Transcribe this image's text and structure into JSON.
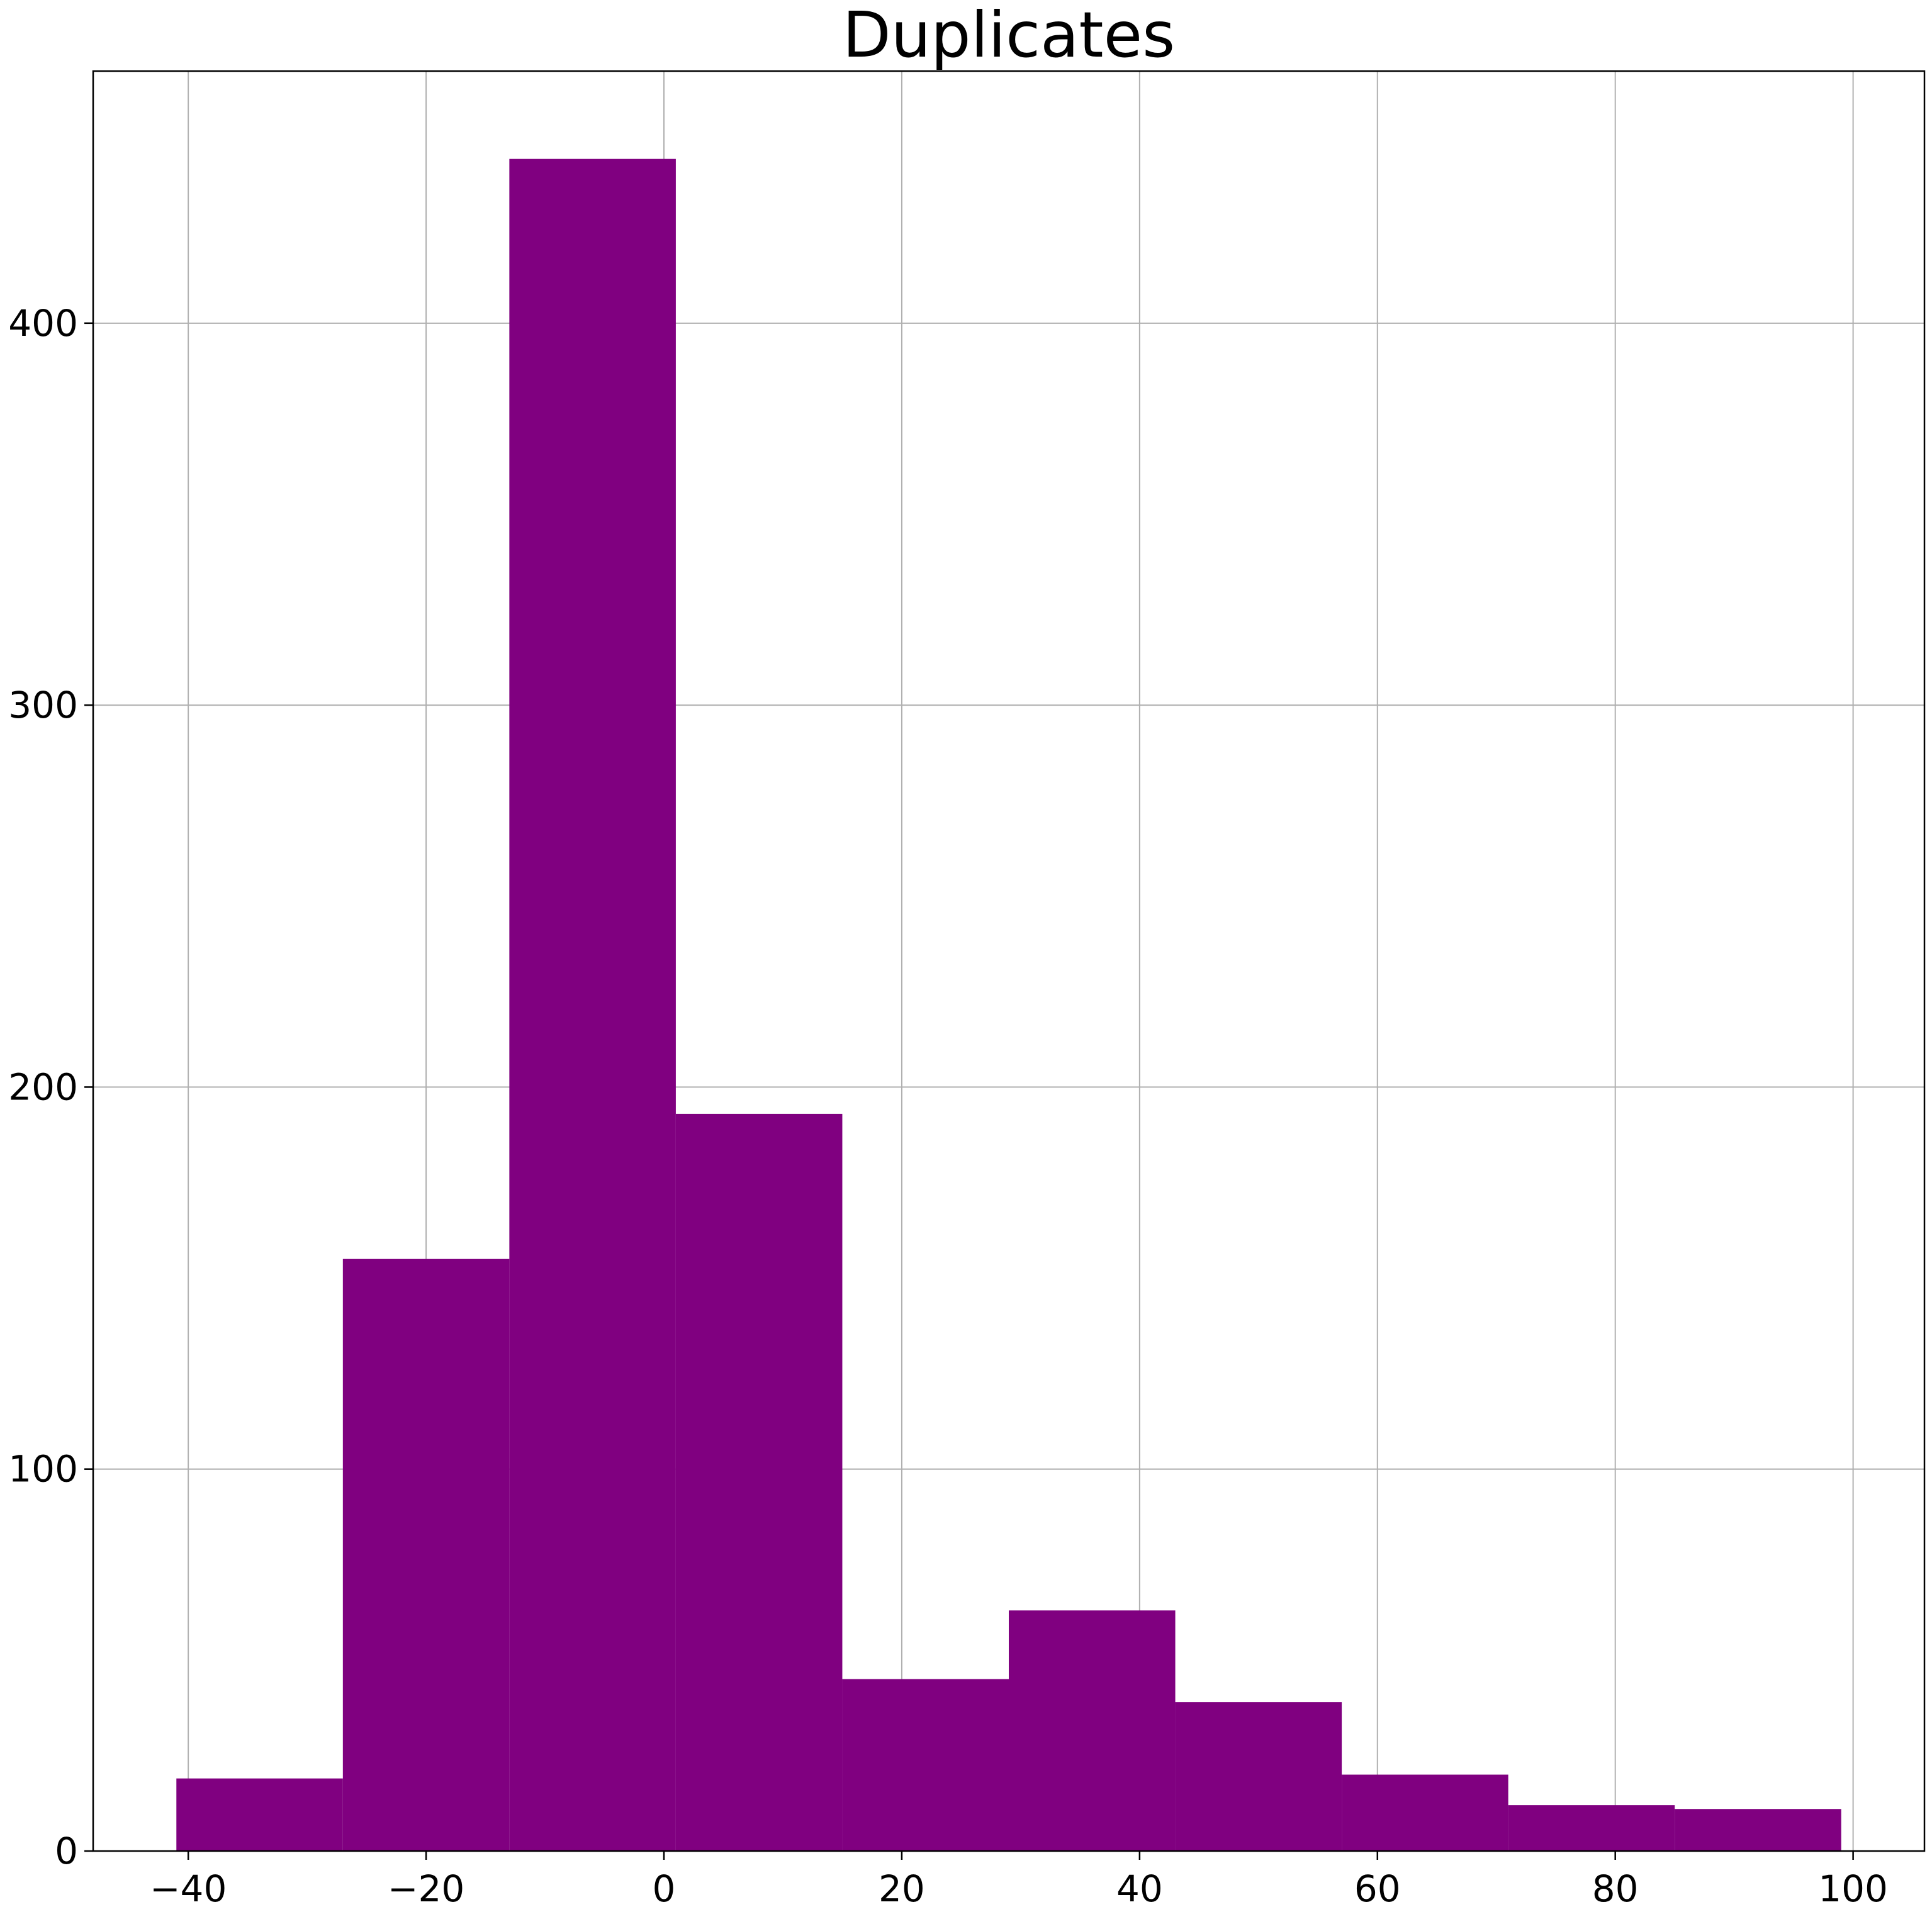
{
  "chart_data": {
    "type": "bar",
    "title": "Duplicates",
    "xlabel": "",
    "ylabel": "",
    "bins": [
      {
        "start": -41.0,
        "end": -27.0,
        "count": 19
      },
      {
        "start": -27.0,
        "end": -13.0,
        "count": 155
      },
      {
        "start": -13.0,
        "end": 1.0,
        "count": 443
      },
      {
        "start": 1.0,
        "end": 15.0,
        "count": 193
      },
      {
        "start": 15.0,
        "end": 29.0,
        "count": 45
      },
      {
        "start": 29.0,
        "end": 43.0,
        "count": 63
      },
      {
        "start": 43.0,
        "end": 57.0,
        "count": 39
      },
      {
        "start": 57.0,
        "end": 71.0,
        "count": 20
      },
      {
        "start": 71.0,
        "end": 85.0,
        "count": 12
      },
      {
        "start": 85.0,
        "end": 99.0,
        "count": 11
      }
    ],
    "xlim": [
      -48,
      106
    ],
    "ylim": [
      0,
      466
    ],
    "xticks": [
      -40,
      -20,
      0,
      20,
      40,
      60,
      80,
      100
    ],
    "xtick_labels": [
      "−40",
      "−20",
      "0",
      "20",
      "40",
      "60",
      "80",
      "100"
    ],
    "yticks": [
      0,
      100,
      200,
      300,
      400
    ],
    "ytick_labels": [
      "0",
      "100",
      "200",
      "300",
      "400"
    ],
    "grid": true,
    "bar_color": "#800080"
  }
}
